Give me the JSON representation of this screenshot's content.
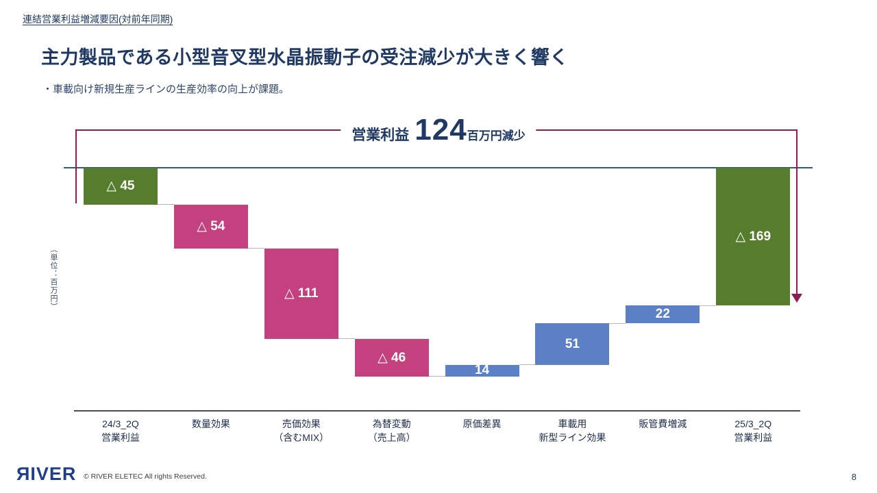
{
  "page": {
    "eyebrow": "連結営業利益増減要因(対前年同期)",
    "heading": "主力製品である小型音叉型水晶振動子の受注減少が大きく響く",
    "bullet": "・車載向け新規生産ラインの生産効率の向上が課題。",
    "page_number": "8"
  },
  "annotation": {
    "prefix": "営業利益",
    "big_number": "124",
    "suffix": "百万円減少"
  },
  "axis": {
    "unit_label": "（単位：百万円）"
  },
  "footer": {
    "logo": "ЯIVER",
    "copyright": "© RIVER ELETEC All rights Reserved."
  },
  "chart_data": {
    "type": "bar",
    "subtype": "waterfall",
    "title": "営業利益 124百万円減少",
    "unit": "百万円",
    "categories": [
      "24/3_2Q\n営業利益",
      "数量効果",
      "売価効果\n（含むMIX）",
      "為替変動\n（売上高）",
      "原価差異",
      "車載用\n新型ライン効果",
      "販管費増減",
      "25/3_2Q\n営業利益"
    ],
    "values": [
      -45,
      -54,
      -111,
      -46,
      14,
      51,
      22,
      -169
    ],
    "roles": [
      "start",
      "delta",
      "delta",
      "delta",
      "delta",
      "delta",
      "delta",
      "total"
    ],
    "bar_labels": [
      "△ 45",
      "△ 54",
      "△ 111",
      "△ 46",
      "14",
      "51",
      "22",
      "△ 169"
    ],
    "total_change": -124,
    "ylim": [
      -260,
      0
    ],
    "grid": false,
    "legend": "none",
    "colors": {
      "start_end": "#567d2d",
      "negative": "#c3417e",
      "positive": "#5b80c6",
      "annotation_line": "#8e1b52",
      "zero_line": "#2d5b7c",
      "navy_text": "#1f3864"
    }
  }
}
